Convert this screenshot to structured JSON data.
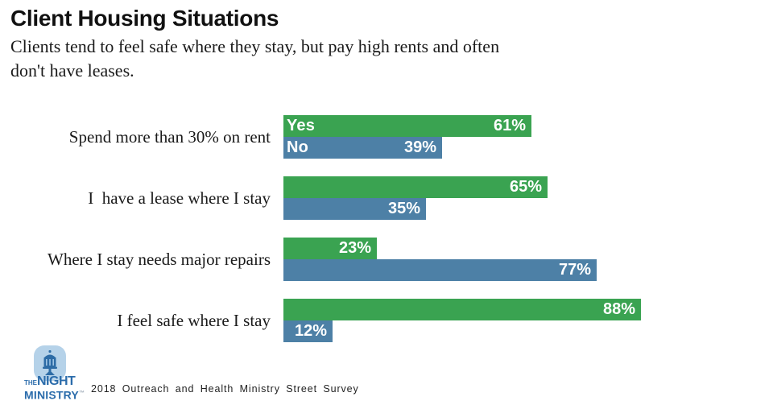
{
  "header": {
    "title": "Client Housing Situations",
    "subtitle": "Clients tend to feel safe where they stay, but pay high rents and often don't have leases."
  },
  "chart_data": {
    "type": "bar",
    "orientation": "horizontal",
    "title": "Client Housing Situations",
    "subtitle": "Clients tend to feel safe where they stay, but pay high rents and often don't have leases.",
    "categories": [
      "Spend more than 30% on rent",
      "I  have a lease where I stay",
      "Where I stay needs major repairs",
      "I feel safe where I stay"
    ],
    "series": [
      {
        "name": "Yes",
        "color": "#3aa351",
        "values": [
          61,
          65,
          23,
          88
        ]
      },
      {
        "name": "No",
        "color": "#4d80a6",
        "values": [
          39,
          35,
          77,
          12
        ]
      }
    ],
    "value_suffix": "%",
    "xlim": [
      0,
      100
    ],
    "grid": false,
    "legend": "series names shown inline on first row bars only",
    "value_labels": "inside bar, right-aligned, white bold"
  },
  "footer": {
    "source": "2018 Outreach and Health Ministry Street Survey",
    "logo": {
      "the": "THE",
      "night": "NIGHT",
      "ministry": "MINISTRY",
      "trademark": "™"
    }
  },
  "colors": {
    "yes_green": "#3aa351",
    "no_blue": "#4d80a6",
    "bar_text": "#ffffff",
    "text": "#1a1a1a",
    "logo_blue": "#2b6cab",
    "logo_badge_bg": "#b5d2e9"
  }
}
